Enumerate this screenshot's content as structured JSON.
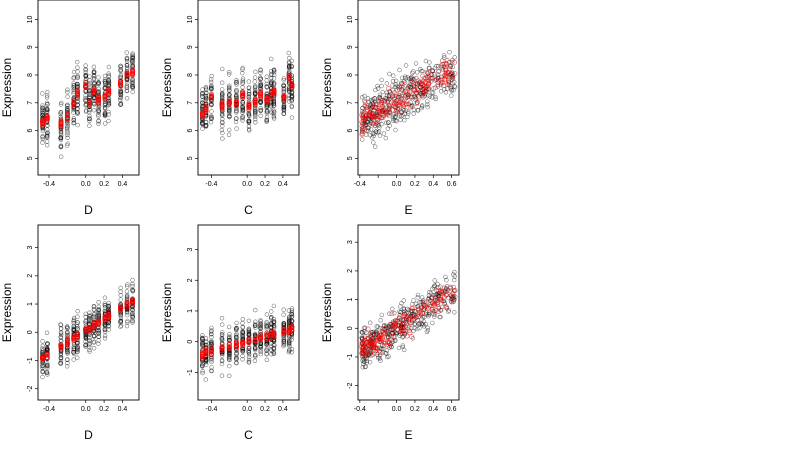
{
  "chart_data": [
    {
      "type": "scatter",
      "panel": "top-left",
      "xlabel": "D",
      "ylabel": "Expression",
      "xlim": [
        -0.52,
        0.58
      ],
      "ylim": [
        4.4,
        10.7
      ],
      "xticks": [
        -0.4,
        0.0,
        0.2,
        0.4
      ],
      "xtick_labels": [
        "-0.4",
        "0.0",
        "0.2",
        "0.4"
      ],
      "yticks": [
        5,
        6,
        7,
        8,
        9,
        10
      ],
      "ytick_labels": [
        "5",
        "6",
        "7",
        "8",
        "9",
        "10"
      ],
      "x_levels": [
        -0.47,
        -0.42,
        -0.27,
        -0.2,
        -0.13,
        -0.09,
        0.0,
        0.04,
        0.09,
        0.14,
        0.21,
        0.25,
        0.38,
        0.45,
        0.51
      ],
      "colors": {
        "observed": "#000000",
        "fitted": "#ff0000"
      },
      "note": "~550 observed points (black) and fitted points (red) per panel",
      "observed_spread": 0.9,
      "fitted_points": [
        [
          -0.47,
          6.3
        ],
        [
          -0.42,
          6.4
        ],
        [
          -0.27,
          6.2
        ],
        [
          -0.2,
          6.5
        ],
        [
          -0.13,
          7.0
        ],
        [
          -0.09,
          7.3
        ],
        [
          0.0,
          7.6
        ],
        [
          0.04,
          7.0
        ],
        [
          0.09,
          7.4
        ],
        [
          0.14,
          7.1
        ],
        [
          0.21,
          7.2
        ],
        [
          0.25,
          7.4
        ],
        [
          0.38,
          7.7
        ],
        [
          0.45,
          8.0
        ],
        [
          0.51,
          8.1
        ]
      ]
    },
    {
      "type": "scatter",
      "panel": "top-middle",
      "xlabel": "C",
      "ylabel": "Expression",
      "xlim": [
        -0.55,
        0.58
      ],
      "ylim": [
        4.4,
        10.7
      ],
      "xticks": [
        -0.4,
        0.0,
        0.2,
        0.4
      ],
      "xtick_labels": [
        "-0.4",
        "0.0",
        "0.2",
        "0.4"
      ],
      "yticks": [
        5,
        6,
        7,
        8,
        9,
        10
      ],
      "ytick_labels": [
        "5",
        "6",
        "7",
        "8",
        "9",
        "10"
      ],
      "x_levels": [
        -0.5,
        -0.46,
        -0.4,
        -0.28,
        -0.2,
        -0.12,
        -0.05,
        0.02,
        0.09,
        0.15,
        0.22,
        0.27,
        0.3,
        0.41,
        0.47,
        0.5
      ],
      "colors": {
        "observed": "#000000",
        "fitted": "#ff0000"
      },
      "observed_spread": 0.9,
      "fitted_points": [
        [
          -0.5,
          6.6
        ],
        [
          -0.46,
          6.8
        ],
        [
          -0.4,
          7.2
        ],
        [
          -0.28,
          6.9
        ],
        [
          -0.2,
          7.0
        ],
        [
          -0.12,
          7.0
        ],
        [
          -0.05,
          7.3
        ],
        [
          0.02,
          6.9
        ],
        [
          0.09,
          7.0
        ],
        [
          0.15,
          7.3
        ],
        [
          0.22,
          7.1
        ],
        [
          0.27,
          7.3
        ],
        [
          0.3,
          7.4
        ],
        [
          0.41,
          7.2
        ],
        [
          0.47,
          7.9
        ],
        [
          0.5,
          7.6
        ]
      ]
    },
    {
      "type": "scatter",
      "panel": "top-right",
      "xlabel": "E",
      "ylabel": "Expression",
      "xlim": [
        -0.42,
        0.68
      ],
      "ylim": [
        4.4,
        10.7
      ],
      "xticks": [
        -0.4,
        -0.2,
        0.0,
        0.2,
        0.4,
        0.6
      ],
      "xtick_labels": [
        "-0.4",
        "",
        "0.0",
        "0.2",
        "0.4",
        "0.6"
      ],
      "yticks": [
        5,
        6,
        7,
        8,
        9,
        10
      ],
      "ytick_labels": [
        "5",
        "6",
        "7",
        "8",
        "9",
        "10"
      ],
      "x_range": [
        -0.38,
        0.64
      ],
      "colors": {
        "observed": "#000000",
        "fitted": "#ff0000"
      },
      "observed_spread": 0.9,
      "fitted_trend": {
        "slope": 1.8,
        "intercept": 7.05
      }
    },
    {
      "type": "scatter",
      "panel": "bottom-left",
      "xlabel": "D",
      "ylabel": "Expression",
      "xlim": [
        -0.52,
        0.58
      ],
      "ylim": [
        -2.4,
        3.8
      ],
      "xticks": [
        -0.4,
        0.0,
        0.2,
        0.4
      ],
      "xtick_labels": [
        "-0.4",
        "0.0",
        "0.2",
        "0.4"
      ],
      "yticks": [
        -2,
        -1,
        0,
        1,
        2,
        3
      ],
      "ytick_labels": [
        "-2",
        "-1",
        "0",
        "1",
        "2",
        "3"
      ],
      "x_levels": [
        -0.47,
        -0.42,
        -0.27,
        -0.2,
        -0.13,
        -0.09,
        0.0,
        0.04,
        0.09,
        0.14,
        0.21,
        0.25,
        0.38,
        0.45,
        0.51
      ],
      "colors": {
        "observed": "#000000",
        "fitted": "#ff0000"
      },
      "observed_spread": 0.7,
      "fitted_trend": {
        "slope": 2.1,
        "intercept": 0.05
      }
    },
    {
      "type": "scatter",
      "panel": "bottom-middle",
      "xlabel": "C",
      "ylabel": "Expression",
      "xlim": [
        -0.55,
        0.58
      ],
      "ylim": [
        -1.9,
        3.8
      ],
      "xticks": [
        -0.4,
        0.0,
        0.2,
        0.4
      ],
      "xtick_labels": [
        "-0.4",
        "0.0",
        "0.2",
        "0.4"
      ],
      "yticks": [
        -1,
        0,
        1,
        2,
        3
      ],
      "ytick_labels": [
        "-1",
        "0",
        "1",
        "2",
        "3"
      ],
      "x_levels": [
        -0.5,
        -0.46,
        -0.4,
        -0.28,
        -0.2,
        -0.12,
        -0.05,
        0.02,
        0.09,
        0.15,
        0.22,
        0.27,
        0.3,
        0.41,
        0.47,
        0.5
      ],
      "colors": {
        "observed": "#000000",
        "fitted": "#ff0000"
      },
      "observed_spread": 0.7,
      "fitted_trend": {
        "slope": 0.8,
        "intercept": 0.0
      }
    },
    {
      "type": "scatter",
      "panel": "bottom-right",
      "xlabel": "E",
      "ylabel": "Expression",
      "xlim": [
        -0.42,
        0.68
      ],
      "ylim": [
        -2.5,
        3.6
      ],
      "xticks": [
        -0.4,
        -0.2,
        0.0,
        0.2,
        0.4,
        0.6
      ],
      "xtick_labels": [
        "-0.4",
        "",
        "0.0",
        "0.2",
        "0.4",
        "0.6"
      ],
      "yticks": [
        -2,
        -1,
        0,
        1,
        2,
        3
      ],
      "ytick_labels": [
        "-2",
        "-1",
        "0",
        "1",
        "2",
        "3"
      ],
      "x_range": [
        -0.38,
        0.64
      ],
      "colors": {
        "observed": "#000000",
        "fitted": "#ff0000"
      },
      "observed_spread": 0.7,
      "fitted_trend": {
        "slope": 2.0,
        "intercept": 0.0
      }
    }
  ]
}
